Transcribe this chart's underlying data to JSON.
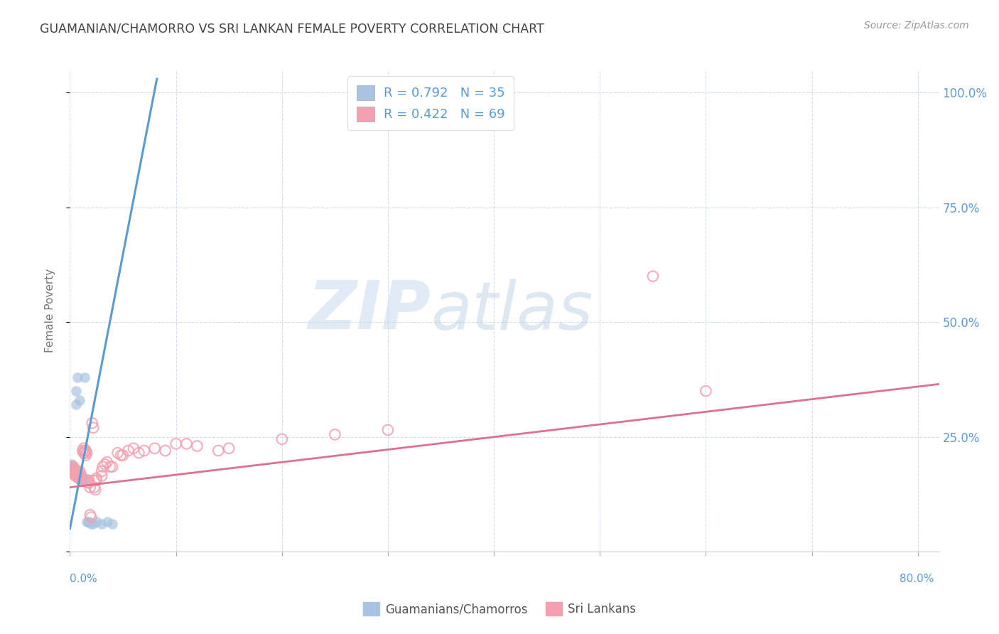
{
  "title": "GUAMANIAN/CHAMORRO VS SRI LANKAN FEMALE POVERTY CORRELATION CHART",
  "source": "Source: ZipAtlas.com",
  "ylabel": "Female Poverty",
  "legend_entries": [
    {
      "label": "Guamanians/Chamorros",
      "R": 0.792,
      "N": 35,
      "color": "#a8c4e0"
    },
    {
      "label": "Sri Lankans",
      "R": 0.422,
      "N": 69,
      "color": "#f4a0b0"
    }
  ],
  "watermark_zip": "ZIP",
  "watermark_atlas": "atlas",
  "background_color": "#ffffff",
  "grid_color": "#c8d8e8",
  "title_color": "#444444",
  "axis_label_color": "#5b9bd5",
  "blue_scatter_color": "#a8c4e0",
  "pink_scatter_color": "#f4a0b0",
  "blue_line_color": "#5b9bd5",
  "pink_line_color": "#e07090",
  "blue_points": [
    [
      0.001,
      0.18
    ],
    [
      0.002,
      0.175
    ],
    [
      0.002,
      0.19
    ],
    [
      0.003,
      0.185
    ],
    [
      0.003,
      0.175
    ],
    [
      0.004,
      0.17
    ],
    [
      0.004,
      0.185
    ],
    [
      0.005,
      0.18
    ],
    [
      0.005,
      0.165
    ],
    [
      0.006,
      0.32
    ],
    [
      0.006,
      0.35
    ],
    [
      0.007,
      0.38
    ],
    [
      0.007,
      0.175
    ],
    [
      0.008,
      0.17
    ],
    [
      0.008,
      0.165
    ],
    [
      0.009,
      0.33
    ],
    [
      0.009,
      0.16
    ],
    [
      0.01,
      0.155
    ],
    [
      0.01,
      0.165
    ],
    [
      0.011,
      0.16
    ],
    [
      0.011,
      0.155
    ],
    [
      0.012,
      0.155
    ],
    [
      0.012,
      0.165
    ],
    [
      0.013,
      0.155
    ],
    [
      0.014,
      0.38
    ],
    [
      0.015,
      0.155
    ],
    [
      0.016,
      0.065
    ],
    [
      0.017,
      0.065
    ],
    [
      0.018,
      0.065
    ],
    [
      0.02,
      0.06
    ],
    [
      0.022,
      0.06
    ],
    [
      0.025,
      0.065
    ],
    [
      0.03,
      0.06
    ],
    [
      0.035,
      0.065
    ],
    [
      0.04,
      0.06
    ]
  ],
  "pink_points": [
    [
      0.001,
      0.175
    ],
    [
      0.002,
      0.18
    ],
    [
      0.002,
      0.185
    ],
    [
      0.003,
      0.175
    ],
    [
      0.003,
      0.185
    ],
    [
      0.004,
      0.17
    ],
    [
      0.004,
      0.18
    ],
    [
      0.005,
      0.175
    ],
    [
      0.005,
      0.165
    ],
    [
      0.006,
      0.17
    ],
    [
      0.006,
      0.175
    ],
    [
      0.007,
      0.165
    ],
    [
      0.007,
      0.175
    ],
    [
      0.008,
      0.17
    ],
    [
      0.008,
      0.16
    ],
    [
      0.009,
      0.165
    ],
    [
      0.009,
      0.175
    ],
    [
      0.01,
      0.17
    ],
    [
      0.01,
      0.165
    ],
    [
      0.011,
      0.155
    ],
    [
      0.012,
      0.22
    ],
    [
      0.013,
      0.215
    ],
    [
      0.013,
      0.225
    ],
    [
      0.014,
      0.22
    ],
    [
      0.014,
      0.215
    ],
    [
      0.015,
      0.21
    ],
    [
      0.015,
      0.22
    ],
    [
      0.016,
      0.215
    ],
    [
      0.016,
      0.155
    ],
    [
      0.017,
      0.15
    ],
    [
      0.017,
      0.155
    ],
    [
      0.018,
      0.15
    ],
    [
      0.018,
      0.155
    ],
    [
      0.019,
      0.14
    ],
    [
      0.019,
      0.08
    ],
    [
      0.02,
      0.075
    ],
    [
      0.021,
      0.28
    ],
    [
      0.022,
      0.27
    ],
    [
      0.023,
      0.155
    ],
    [
      0.023,
      0.14
    ],
    [
      0.024,
      0.135
    ],
    [
      0.025,
      0.16
    ],
    [
      0.025,
      0.155
    ],
    [
      0.03,
      0.165
    ],
    [
      0.03,
      0.175
    ],
    [
      0.031,
      0.185
    ],
    [
      0.033,
      0.19
    ],
    [
      0.035,
      0.195
    ],
    [
      0.038,
      0.185
    ],
    [
      0.04,
      0.185
    ],
    [
      0.045,
      0.215
    ],
    [
      0.048,
      0.21
    ],
    [
      0.05,
      0.21
    ],
    [
      0.055,
      0.22
    ],
    [
      0.06,
      0.225
    ],
    [
      0.065,
      0.215
    ],
    [
      0.07,
      0.22
    ],
    [
      0.08,
      0.225
    ],
    [
      0.09,
      0.22
    ],
    [
      0.1,
      0.235
    ],
    [
      0.11,
      0.235
    ],
    [
      0.12,
      0.23
    ],
    [
      0.14,
      0.22
    ],
    [
      0.15,
      0.225
    ],
    [
      0.2,
      0.245
    ],
    [
      0.25,
      0.255
    ],
    [
      0.3,
      0.265
    ],
    [
      0.55,
      0.6
    ],
    [
      0.6,
      0.35
    ]
  ],
  "xlim": [
    0,
    0.82
  ],
  "ylim": [
    0,
    1.05
  ],
  "blue_line_x": [
    0.0,
    0.082
  ],
  "blue_line_y": [
    0.05,
    1.03
  ],
  "pink_line_x": [
    0.0,
    0.82
  ],
  "pink_line_y": [
    0.14,
    0.365
  ]
}
